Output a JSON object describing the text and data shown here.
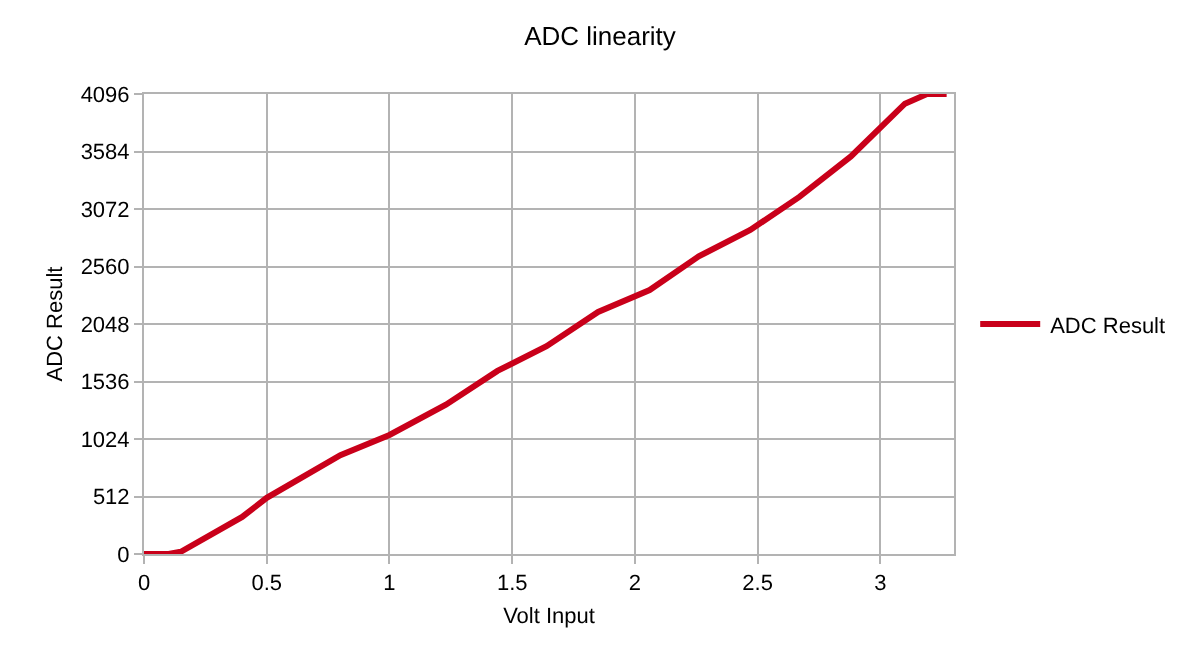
{
  "chart_data": {
    "type": "line",
    "title": "ADC linearity",
    "xlabel": "Volt Input",
    "ylabel": "ADC Result",
    "series": [
      {
        "name": "ADC Result",
        "color": "#c9001a",
        "x": [
          0,
          0.1,
          0.15,
          0.4,
          0.5,
          0.8,
          1.0,
          1.23,
          1.44,
          1.64,
          1.85,
          2.06,
          2.26,
          2.47,
          2.67,
          2.88,
          3.1,
          3.19,
          3.27
        ],
        "values": [
          0,
          0,
          20,
          330,
          500,
          880,
          1060,
          1330,
          1630,
          1850,
          2155,
          2350,
          2650,
          2885,
          3180,
          3540,
          4010,
          4095,
          4095
        ]
      }
    ],
    "xlim": [
      0,
      3.3
    ],
    "xticks": [
      0,
      0.5,
      1,
      1.5,
      2,
      2.5,
      3
    ],
    "ylim": [
      0,
      4096
    ],
    "yticks": [
      0,
      512,
      1024,
      1536,
      2048,
      2560,
      3072,
      3584,
      4096
    ],
    "grid": true,
    "legend": "right",
    "marker": "none",
    "line_style": "solid"
  }
}
